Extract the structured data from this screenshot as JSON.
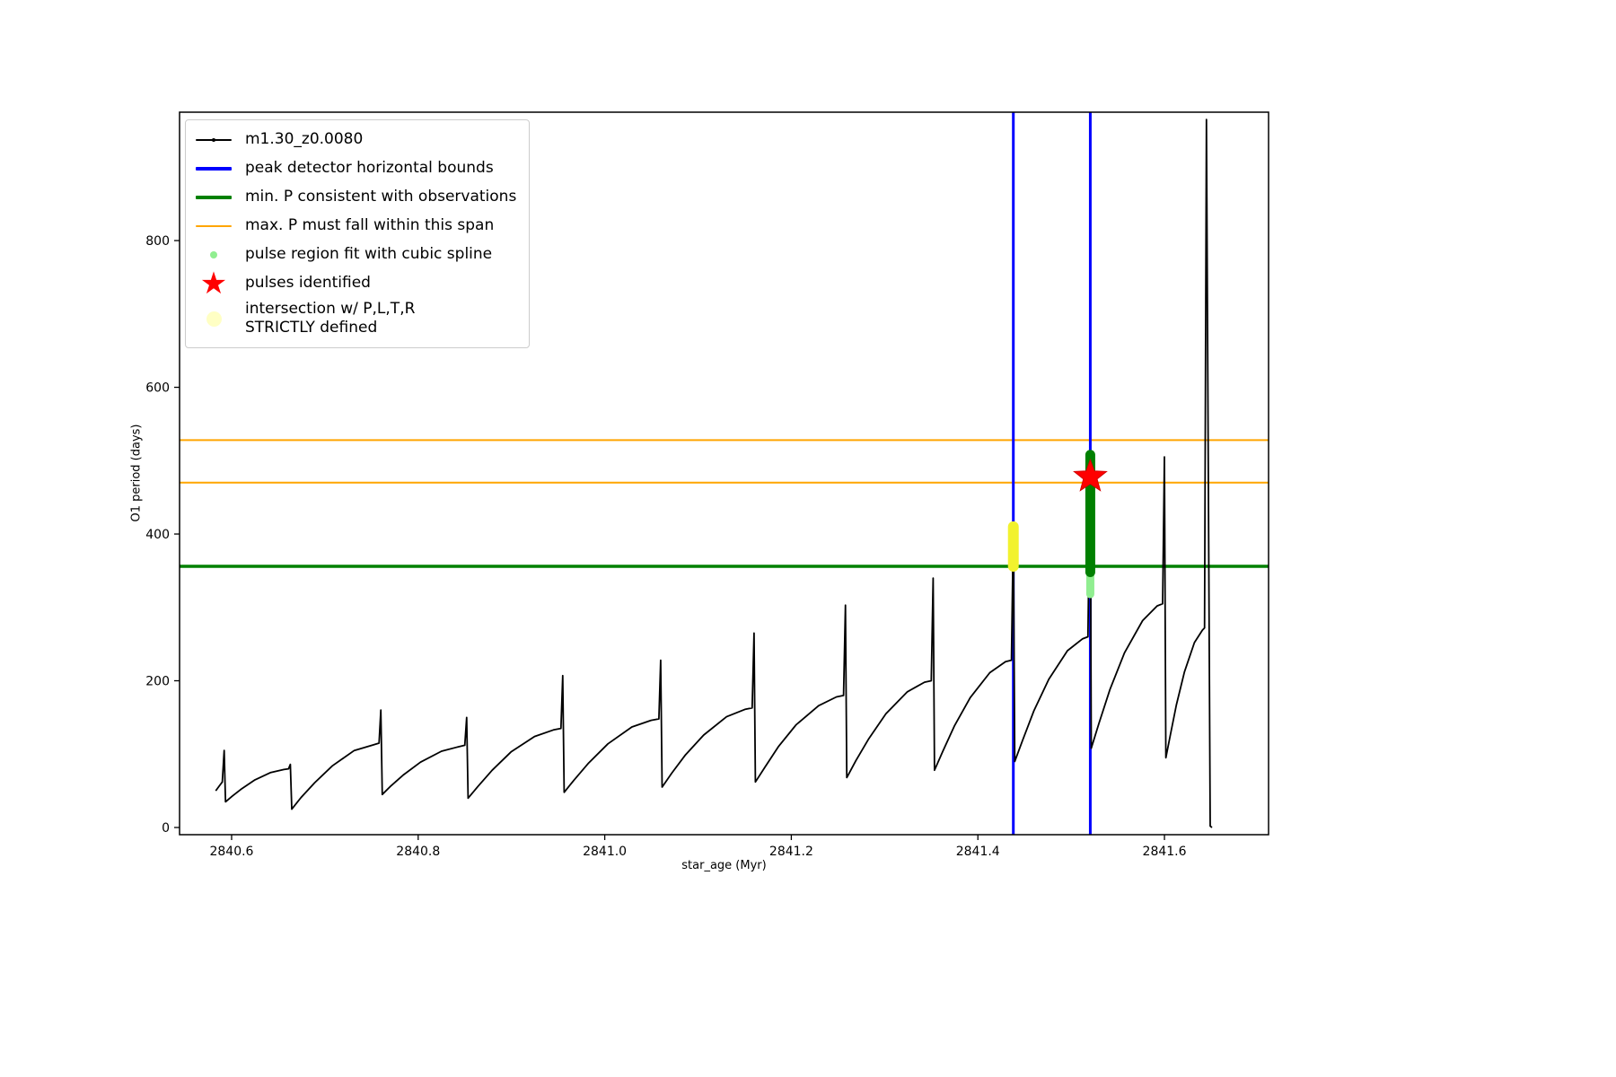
{
  "axes": {
    "xlabel": "star_age (Myr)",
    "ylabel": "O1 period (days)"
  },
  "legend": {
    "position": "upper left",
    "items": [
      {
        "label": "m1.30_z0.0080",
        "marker": "line-dot",
        "color": "#000000",
        "lw": 2
      },
      {
        "label": "peak detector horizontal bounds",
        "marker": "line",
        "color": "#0000ff",
        "lw": 4
      },
      {
        "label": "min. P consistent with observations",
        "marker": "line",
        "color": "#008000",
        "lw": 4
      },
      {
        "label": "max. P must fall within this span",
        "marker": "line",
        "color": "#ffa500",
        "lw": 2
      },
      {
        "label": "pulse region fit with cubic spline",
        "marker": "dot",
        "color": "#90ee90",
        "size": 8
      },
      {
        "label": "pulses identified",
        "marker": "star",
        "color": "#ff0000"
      },
      {
        "label": "intersection w/ P,L,T,R\nSTRICTLY defined",
        "marker": "dot",
        "color": "#ffffc4",
        "size": 17
      }
    ]
  },
  "chart_data": {
    "type": "line",
    "title": "",
    "xlabel": "star_age (Myr)",
    "ylabel": "O1 period (days)",
    "grid": false,
    "legend_position": "upper left",
    "xlim": [
      2840.5442,
      2841.7116
    ],
    "ylim": [
      -9.8,
      975
    ],
    "xticks": [
      2840.6,
      2840.8,
      2841.0,
      2841.2,
      2841.4,
      2841.6
    ],
    "yticks": [
      0,
      200,
      400,
      600,
      800
    ],
    "series": [
      {
        "name": "m1.30_z0.0080",
        "color": "#000000",
        "lw": 1.8,
        "points": [
          [
            2840.583,
            50
          ],
          [
            2840.587,
            57
          ],
          [
            2840.59,
            62
          ],
          [
            2840.592,
            105
          ],
          [
            2840.5935,
            35
          ],
          [
            2840.601,
            43
          ],
          [
            2840.611,
            53
          ],
          [
            2840.625,
            65
          ],
          [
            2840.642,
            75
          ],
          [
            2840.656,
            79
          ],
          [
            2840.661,
            80
          ],
          [
            2840.663,
            86
          ],
          [
            2840.6645,
            25
          ],
          [
            2840.6745,
            41
          ],
          [
            2840.689,
            61
          ],
          [
            2840.708,
            84
          ],
          [
            2840.7315,
            105
          ],
          [
            2840.7505,
            112
          ],
          [
            2840.758,
            115
          ],
          [
            2840.76,
            160
          ],
          [
            2840.7615,
            45
          ],
          [
            2840.771,
            57
          ],
          [
            2840.7845,
            72
          ],
          [
            2840.8025,
            89
          ],
          [
            2840.825,
            104
          ],
          [
            2840.843,
            110
          ],
          [
            2840.85,
            112
          ],
          [
            2840.852,
            150
          ],
          [
            2840.8535,
            40
          ],
          [
            2840.8641,
            56
          ],
          [
            2840.8793,
            78
          ],
          [
            2840.8995,
            103
          ],
          [
            2840.9247,
            124
          ],
          [
            2840.9449,
            133
          ],
          [
            2840.953,
            135
          ],
          [
            2840.955,
            207
          ],
          [
            2840.9565,
            48
          ],
          [
            2840.9673,
            65
          ],
          [
            2840.9828,
            88
          ],
          [
            2841.0034,
            114
          ],
          [
            2841.0291,
            137
          ],
          [
            2841.0497,
            146
          ],
          [
            2841.058,
            148
          ],
          [
            2841.06,
            228
          ],
          [
            2841.0615,
            55
          ],
          [
            2841.0718,
            74
          ],
          [
            2841.0865,
            99
          ],
          [
            2841.1061,
            126
          ],
          [
            2841.1306,
            151
          ],
          [
            2841.1502,
            161
          ],
          [
            2841.158,
            163
          ],
          [
            2841.16,
            265
          ],
          [
            2841.1615,
            62
          ],
          [
            2841.1716,
            82
          ],
          [
            2841.186,
            110
          ],
          [
            2841.2052,
            140
          ],
          [
            2841.2292,
            166
          ],
          [
            2841.2484,
            178
          ],
          [
            2841.256,
            180
          ],
          [
            2841.258,
            303
          ],
          [
            2841.2595,
            68
          ],
          [
            2841.2692,
            91
          ],
          [
            2841.283,
            121
          ],
          [
            2841.3014,
            155
          ],
          [
            2841.3244,
            185
          ],
          [
            2841.3428,
            198
          ],
          [
            2841.35,
            200
          ],
          [
            2841.352,
            340
          ],
          [
            2841.3535,
            78
          ],
          [
            2841.3624,
            104
          ],
          [
            2841.375,
            139
          ],
          [
            2841.3918,
            177
          ],
          [
            2841.4128,
            211
          ],
          [
            2841.4296,
            226
          ],
          [
            2841.436,
            228
          ],
          [
            2841.438,
            408
          ],
          [
            2841.4395,
            90
          ],
          [
            2841.448,
            119
          ],
          [
            2841.46,
            159
          ],
          [
            2841.476,
            202
          ],
          [
            2841.496,
            241
          ],
          [
            2841.512,
            257
          ],
          [
            2841.518,
            260
          ],
          [
            2841.5205,
            510
          ],
          [
            2841.5215,
            108
          ],
          [
            2841.5298,
            142
          ],
          [
            2841.5415,
            188
          ],
          [
            2841.5571,
            238
          ],
          [
            2841.5766,
            282
          ],
          [
            2841.5922,
            302
          ],
          [
            2841.598,
            305
          ],
          [
            2841.6,
            505
          ],
          [
            2841.6015,
            95
          ],
          [
            2841.6063,
            126
          ],
          [
            2841.6128,
            167
          ],
          [
            2841.6214,
            212
          ],
          [
            2841.6321,
            252
          ],
          [
            2841.6407,
            269
          ],
          [
            2841.643,
            272
          ],
          [
            2841.645,
            965
          ],
          [
            2841.649,
            2
          ],
          [
            2841.651,
            0
          ]
        ]
      }
    ],
    "vlines": [
      {
        "name": "peak-detector-left-bound",
        "x": 2841.438,
        "color": "#0000ff",
        "lw": 3
      },
      {
        "name": "peak-detector-right-bound",
        "x": 2841.5205,
        "color": "#0000ff",
        "lw": 3
      }
    ],
    "hlines": [
      {
        "name": "max-P-span-upper",
        "y": 528,
        "color": "#ffa500",
        "lw": 2
      },
      {
        "name": "max-P-span-lower",
        "y": 470,
        "color": "#ffa500",
        "lw": 2
      },
      {
        "name": "min-P-observed",
        "y": 356,
        "color": "#008000",
        "lw": 3.5
      }
    ],
    "clusters": [
      {
        "name": "intersection-PLTR-strict",
        "x": 2841.438,
        "y_min": 356,
        "y_max": 410,
        "color": "#f2f22e",
        "width": 12
      },
      {
        "name": "pulse-region-cubic-spline",
        "x": 2841.5205,
        "y_min": 318,
        "y_max": 352,
        "color": "#90ee90",
        "width": 9
      },
      {
        "name": "peak-candidate-points",
        "x": 2841.5205,
        "y_min": 348,
        "y_max": 508,
        "color": "#008000",
        "width": 11
      }
    ],
    "pulses_identified": [
      {
        "x": 2841.5205,
        "y": 478,
        "color": "#ff0000",
        "size": 19
      }
    ]
  }
}
